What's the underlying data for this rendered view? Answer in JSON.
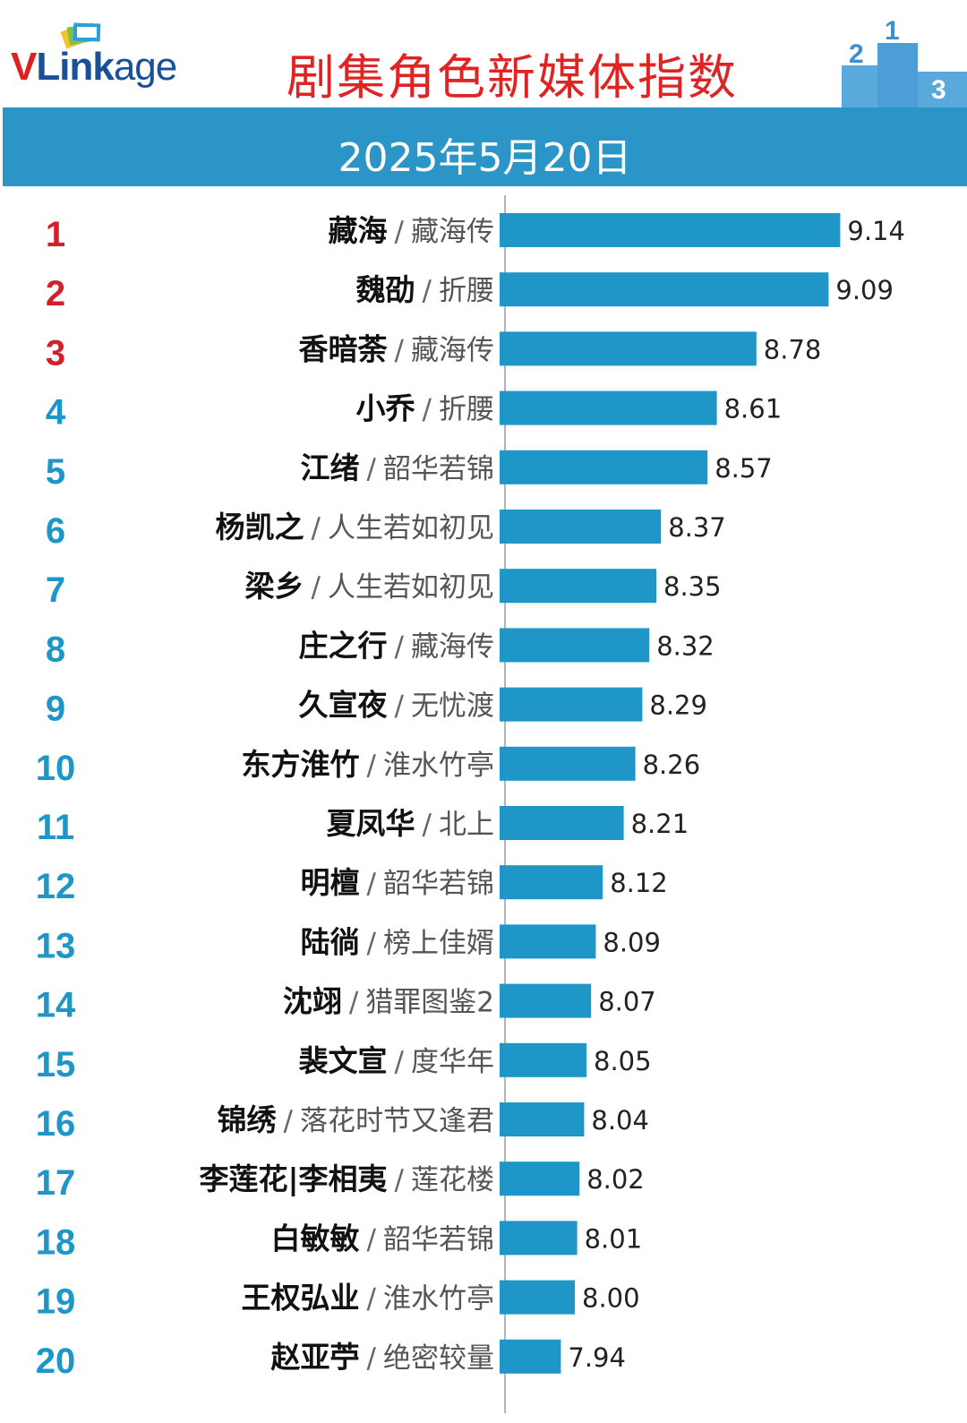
{
  "header": {
    "logo_text_v": "V",
    "logo_text_link": "Link",
    "logo_text_age": "age",
    "title": "剧集角色新媒体指数",
    "date": "2025年5月20日"
  },
  "colors": {
    "bar": "#1e96c8",
    "top_rank": "#d0202a",
    "rank": "#1e96c8",
    "title": "#e02323",
    "band": "#2a95c6"
  },
  "chart_data": {
    "type": "bar",
    "orientation": "horizontal",
    "title": "剧集角色新媒体指数",
    "subtitle": "2025年5月20日",
    "xlim": [
      7.7,
      9.2
    ],
    "rows": [
      {
        "rank": "1",
        "name": "藏海",
        "show": "藏海传",
        "value": 9.14
      },
      {
        "rank": "2",
        "name": "魏劭",
        "show": "折腰",
        "value": 9.09
      },
      {
        "rank": "3",
        "name": "香暗荼",
        "show": "藏海传",
        "value": 8.78
      },
      {
        "rank": "4",
        "name": "小乔",
        "show": "折腰",
        "value": 8.61
      },
      {
        "rank": "5",
        "name": "江绪",
        "show": "韶华若锦",
        "value": 8.57
      },
      {
        "rank": "6",
        "name": "杨凯之",
        "show": "人生若如初见",
        "value": 8.37
      },
      {
        "rank": "7",
        "name": "梁乡",
        "show": "人生若如初见",
        "value": 8.35
      },
      {
        "rank": "8",
        "name": "庄之行",
        "show": "藏海传",
        "value": 8.32
      },
      {
        "rank": "9",
        "name": "久宣夜",
        "show": "无忧渡",
        "value": 8.29
      },
      {
        "rank": "10",
        "name": "东方淮竹",
        "show": "淮水竹亭",
        "value": 8.26
      },
      {
        "rank": "11",
        "name": "夏凤华",
        "show": "北上",
        "value": 8.21
      },
      {
        "rank": "12",
        "name": "明檀",
        "show": "韶华若锦",
        "value": 8.12
      },
      {
        "rank": "13",
        "name": "陆徜",
        "show": "榜上佳婿",
        "value": 8.09
      },
      {
        "rank": "14",
        "name": "沈翊",
        "show": "猎罪图鉴2",
        "value": 8.07
      },
      {
        "rank": "15",
        "name": "裴文宣",
        "show": "度华年",
        "value": 8.05
      },
      {
        "rank": "16",
        "name": "锦绣",
        "show": "落花时节又逢君",
        "value": 8.04
      },
      {
        "rank": "17",
        "name": "李莲花|李相夷",
        "show": "莲花楼",
        "value": 8.02
      },
      {
        "rank": "18",
        "name": "白敏敏",
        "show": "韶华若锦",
        "value": 8.01
      },
      {
        "rank": "19",
        "name": "王权弘业",
        "show": "淮水竹亭",
        "value": 8.0
      },
      {
        "rank": "20",
        "name": "赵亚苧",
        "show": "绝密较量",
        "value": 7.94
      }
    ]
  }
}
